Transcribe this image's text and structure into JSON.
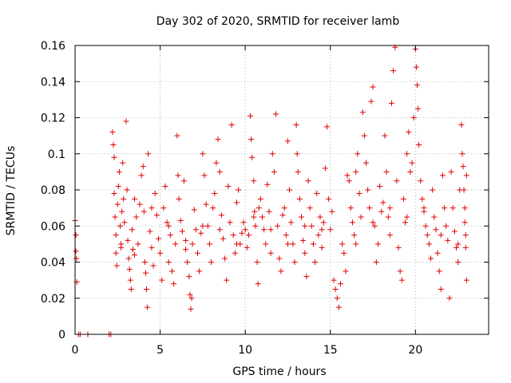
{
  "chart_data": {
    "type": "scatter",
    "title": "Day 302 of 2020, SRMTID for receiver lamb",
    "xlabel": "GPS time / hours",
    "ylabel": "SRMTID / TECUs",
    "xlim": [
      0,
      24.3
    ],
    "ylim": [
      0,
      0.16
    ],
    "xticks": [
      0,
      5,
      10,
      15,
      20
    ],
    "xtick_labels": [
      "0",
      "5",
      "10",
      "15",
      "20"
    ],
    "yticks": [
      0,
      0.02,
      0.04,
      0.06,
      0.08,
      0.1,
      0.12,
      0.14,
      0.16
    ],
    "ytick_labels": [
      "0",
      "0.02",
      "0.04",
      "0.06",
      "0.08",
      "0.1",
      "0.12",
      "0.14",
      "0.16"
    ],
    "grid": true,
    "marker": "+",
    "color": "#e00000",
    "series": [
      {
        "name": "SRMTID",
        "points": [
          [
            0.0,
            0.063
          ],
          [
            0.05,
            0.055
          ],
          [
            0.05,
            0.046
          ],
          [
            0.08,
            0.042
          ],
          [
            0.1,
            0.029
          ],
          [
            0.2,
            0.0
          ],
          [
            0.3,
            0.0
          ],
          [
            0.75,
            0.0
          ],
          [
            2.0,
            0.0
          ],
          [
            2.1,
            0.0
          ],
          [
            2.2,
            0.112
          ],
          [
            2.25,
            0.105
          ],
          [
            2.3,
            0.098
          ],
          [
            2.3,
            0.078
          ],
          [
            2.35,
            0.065
          ],
          [
            2.4,
            0.055
          ],
          [
            2.4,
            0.045
          ],
          [
            2.45,
            0.038
          ],
          [
            2.5,
            0.072
          ],
          [
            2.55,
            0.082
          ],
          [
            2.6,
            0.09
          ],
          [
            2.65,
            0.06
          ],
          [
            2.7,
            0.048
          ],
          [
            2.75,
            0.068
          ],
          [
            2.8,
            0.095
          ],
          [
            2.85,
            0.075
          ],
          [
            2.9,
            0.062
          ],
          [
            3.0,
            0.118
          ],
          [
            3.05,
            0.08
          ],
          [
            3.1,
            0.052
          ],
          [
            3.15,
            0.042
          ],
          [
            3.2,
            0.036
          ],
          [
            3.25,
            0.03
          ],
          [
            3.3,
            0.025
          ],
          [
            3.35,
            0.058
          ],
          [
            3.4,
            0.047
          ],
          [
            3.5,
            0.044
          ],
          [
            3.6,
            0.065
          ],
          [
            3.7,
            0.05
          ],
          [
            3.8,
            0.072
          ],
          [
            3.9,
            0.088
          ],
          [
            4.0,
            0.093
          ],
          [
            4.05,
            0.068
          ],
          [
            4.1,
            0.04
          ],
          [
            4.15,
            0.034
          ],
          [
            4.2,
            0.025
          ],
          [
            4.25,
            0.015
          ],
          [
            4.3,
            0.1
          ],
          [
            4.4,
            0.057
          ],
          [
            4.5,
            0.048
          ],
          [
            4.6,
            0.038
          ],
          [
            4.7,
            0.078
          ],
          [
            4.8,
            0.066
          ],
          [
            4.9,
            0.053
          ],
          [
            5.0,
            0.045
          ],
          [
            5.1,
            0.03
          ],
          [
            5.2,
            0.07
          ],
          [
            5.3,
            0.082
          ],
          [
            5.4,
            0.062
          ],
          [
            5.5,
            0.04
          ],
          [
            5.6,
            0.055
          ],
          [
            5.7,
            0.035
          ],
          [
            5.8,
            0.028
          ],
          [
            5.9,
            0.05
          ],
          [
            6.0,
            0.11
          ],
          [
            6.05,
            0.088
          ],
          [
            6.1,
            0.075
          ],
          [
            6.2,
            0.063
          ],
          [
            6.3,
            0.057
          ],
          [
            6.4,
            0.085
          ],
          [
            6.5,
            0.047
          ],
          [
            6.6,
            0.04
          ],
          [
            6.7,
            0.032
          ],
          [
            6.75,
            0.022
          ],
          [
            6.8,
            0.014
          ],
          [
            6.85,
            0.02
          ],
          [
            6.9,
            0.05
          ],
          [
            7.0,
            0.069
          ],
          [
            7.1,
            0.058
          ],
          [
            7.2,
            0.045
          ],
          [
            7.3,
            0.035
          ],
          [
            7.4,
            0.056
          ],
          [
            7.5,
            0.1
          ],
          [
            7.6,
            0.088
          ],
          [
            7.7,
            0.072
          ],
          [
            7.8,
            0.06
          ],
          [
            7.9,
            0.05
          ],
          [
            8.0,
            0.04
          ],
          [
            8.1,
            0.07
          ],
          [
            8.2,
            0.078
          ],
          [
            8.3,
            0.095
          ],
          [
            8.4,
            0.108
          ],
          [
            8.5,
            0.09
          ],
          [
            8.6,
            0.066
          ],
          [
            8.7,
            0.053
          ],
          [
            8.8,
            0.042
          ],
          [
            8.9,
            0.03
          ],
          [
            9.0,
            0.082
          ],
          [
            9.1,
            0.062
          ],
          [
            9.2,
            0.116
          ],
          [
            9.3,
            0.055
          ],
          [
            9.4,
            0.045
          ],
          [
            9.5,
            0.073
          ],
          [
            9.6,
            0.08
          ],
          [
            9.7,
            0.05
          ],
          [
            9.8,
            0.056
          ],
          [
            9.9,
            0.062
          ],
          [
            10.0,
            0.058
          ],
          [
            10.1,
            0.048
          ],
          [
            10.2,
            0.055
          ],
          [
            10.3,
            0.121
          ],
          [
            10.35,
            0.108
          ],
          [
            10.4,
            0.098
          ],
          [
            10.5,
            0.085
          ],
          [
            10.55,
            0.068
          ],
          [
            10.6,
            0.06
          ],
          [
            10.7,
            0.04
          ],
          [
            10.75,
            0.028
          ],
          [
            10.8,
            0.07
          ],
          [
            10.9,
            0.075
          ],
          [
            11.0,
            0.065
          ],
          [
            11.1,
            0.058
          ],
          [
            11.2,
            0.05
          ],
          [
            11.3,
            0.083
          ],
          [
            11.4,
            0.068
          ],
          [
            11.5,
            0.045
          ],
          [
            11.6,
            0.1
          ],
          [
            11.7,
            0.09
          ],
          [
            11.8,
            0.122
          ],
          [
            11.9,
            0.06
          ],
          [
            12.0,
            0.042
          ],
          [
            12.1,
            0.035
          ],
          [
            12.2,
            0.066
          ],
          [
            12.3,
            0.07
          ],
          [
            12.4,
            0.055
          ],
          [
            12.5,
            0.107
          ],
          [
            12.6,
            0.08
          ],
          [
            12.7,
            0.062
          ],
          [
            12.8,
            0.05
          ],
          [
            12.9,
            0.04
          ],
          [
            13.0,
            0.116
          ],
          [
            13.05,
            0.1
          ],
          [
            13.1,
            0.09
          ],
          [
            13.2,
            0.075
          ],
          [
            13.3,
            0.065
          ],
          [
            13.4,
            0.052
          ],
          [
            13.5,
            0.045
          ],
          [
            13.6,
            0.032
          ],
          [
            13.7,
            0.085
          ],
          [
            13.8,
            0.07
          ],
          [
            13.9,
            0.06
          ],
          [
            14.0,
            0.05
          ],
          [
            14.1,
            0.04
          ],
          [
            14.2,
            0.078
          ],
          [
            14.3,
            0.055
          ],
          [
            14.4,
            0.065
          ],
          [
            14.5,
            0.048
          ],
          [
            14.6,
            0.062
          ],
          [
            14.7,
            0.092
          ],
          [
            14.8,
            0.115
          ],
          [
            14.9,
            0.075
          ],
          [
            15.0,
            0.058
          ],
          [
            15.1,
            0.068
          ],
          [
            15.2,
            0.03
          ],
          [
            15.3,
            0.025
          ],
          [
            15.4,
            0.02
          ],
          [
            15.5,
            0.015
          ],
          [
            15.6,
            0.028
          ],
          [
            15.7,
            0.05
          ],
          [
            15.8,
            0.045
          ],
          [
            15.9,
            0.035
          ],
          [
            16.0,
            0.088
          ],
          [
            16.1,
            0.085
          ],
          [
            16.2,
            0.07
          ],
          [
            16.3,
            0.062
          ],
          [
            16.4,
            0.055
          ],
          [
            16.5,
            0.09
          ],
          [
            16.6,
            0.1
          ],
          [
            16.7,
            0.078
          ],
          [
            16.8,
            0.065
          ],
          [
            16.9,
            0.123
          ],
          [
            17.0,
            0.11
          ],
          [
            17.1,
            0.095
          ],
          [
            17.2,
            0.08
          ],
          [
            17.3,
            0.07
          ],
          [
            17.4,
            0.129
          ],
          [
            17.5,
            0.137
          ],
          [
            17.6,
            0.06
          ],
          [
            17.7,
            0.04
          ],
          [
            17.8,
            0.05
          ],
          [
            17.9,
            0.082
          ],
          [
            18.0,
            0.068
          ],
          [
            18.1,
            0.073
          ],
          [
            18.2,
            0.11
          ],
          [
            18.3,
            0.09
          ],
          [
            18.4,
            0.065
          ],
          [
            18.5,
            0.055
          ],
          [
            18.6,
            0.128
          ],
          [
            18.7,
            0.146
          ],
          [
            18.8,
            0.159
          ],
          [
            18.9,
            0.085
          ],
          [
            19.0,
            0.048
          ],
          [
            19.1,
            0.035
          ],
          [
            19.2,
            0.03
          ],
          [
            19.3,
            0.075
          ],
          [
            19.4,
            0.062
          ],
          [
            19.5,
            0.1
          ],
          [
            19.6,
            0.112
          ],
          [
            19.7,
            0.09
          ],
          [
            19.8,
            0.095
          ],
          [
            19.9,
            0.12
          ],
          [
            20.0,
            0.158
          ],
          [
            20.05,
            0.148
          ],
          [
            20.1,
            0.138
          ],
          [
            20.15,
            0.125
          ],
          [
            20.2,
            0.105
          ],
          [
            20.3,
            0.085
          ],
          [
            20.4,
            0.075
          ],
          [
            20.5,
            0.068
          ],
          [
            20.6,
            0.06
          ],
          [
            20.7,
            0.055
          ],
          [
            20.8,
            0.05
          ],
          [
            20.9,
            0.042
          ],
          [
            21.0,
            0.08
          ],
          [
            21.1,
            0.065
          ],
          [
            21.2,
            0.058
          ],
          [
            21.3,
            0.045
          ],
          [
            21.4,
            0.035
          ],
          [
            21.5,
            0.025
          ],
          [
            21.6,
            0.088
          ],
          [
            21.7,
            0.07
          ],
          [
            21.8,
            0.06
          ],
          [
            21.9,
            0.052
          ],
          [
            22.0,
            0.02
          ],
          [
            22.1,
            0.09
          ],
          [
            22.2,
            0.07
          ],
          [
            22.3,
            0.057
          ],
          [
            22.4,
            0.048
          ],
          [
            22.5,
            0.04
          ],
          [
            22.6,
            0.08
          ],
          [
            22.7,
            0.116
          ],
          [
            22.75,
            0.1
          ],
          [
            22.8,
            0.093
          ],
          [
            22.85,
            0.08
          ],
          [
            22.9,
            0.07
          ],
          [
            22.9,
            0.062
          ],
          [
            22.95,
            0.055
          ],
          [
            22.95,
            0.048
          ],
          [
            23.0,
            0.03
          ],
          [
            23.0,
            0.088
          ],
          [
            2.7,
            0.05
          ],
          [
            3.5,
            0.075
          ],
          [
            4.5,
            0.07
          ],
          [
            5.5,
            0.06
          ],
          [
            6.5,
            0.052
          ],
          [
            7.5,
            0.06
          ],
          [
            8.5,
            0.058
          ],
          [
            9.5,
            0.05
          ],
          [
            10.5,
            0.065
          ],
          [
            11.5,
            0.058
          ],
          [
            12.5,
            0.05
          ],
          [
            13.5,
            0.06
          ],
          [
            14.5,
            0.058
          ],
          [
            16.5,
            0.05
          ],
          [
            17.5,
            0.062
          ],
          [
            18.5,
            0.07
          ],
          [
            19.5,
            0.065
          ],
          [
            20.5,
            0.07
          ],
          [
            21.5,
            0.055
          ],
          [
            22.5,
            0.05
          ]
        ]
      }
    ]
  }
}
